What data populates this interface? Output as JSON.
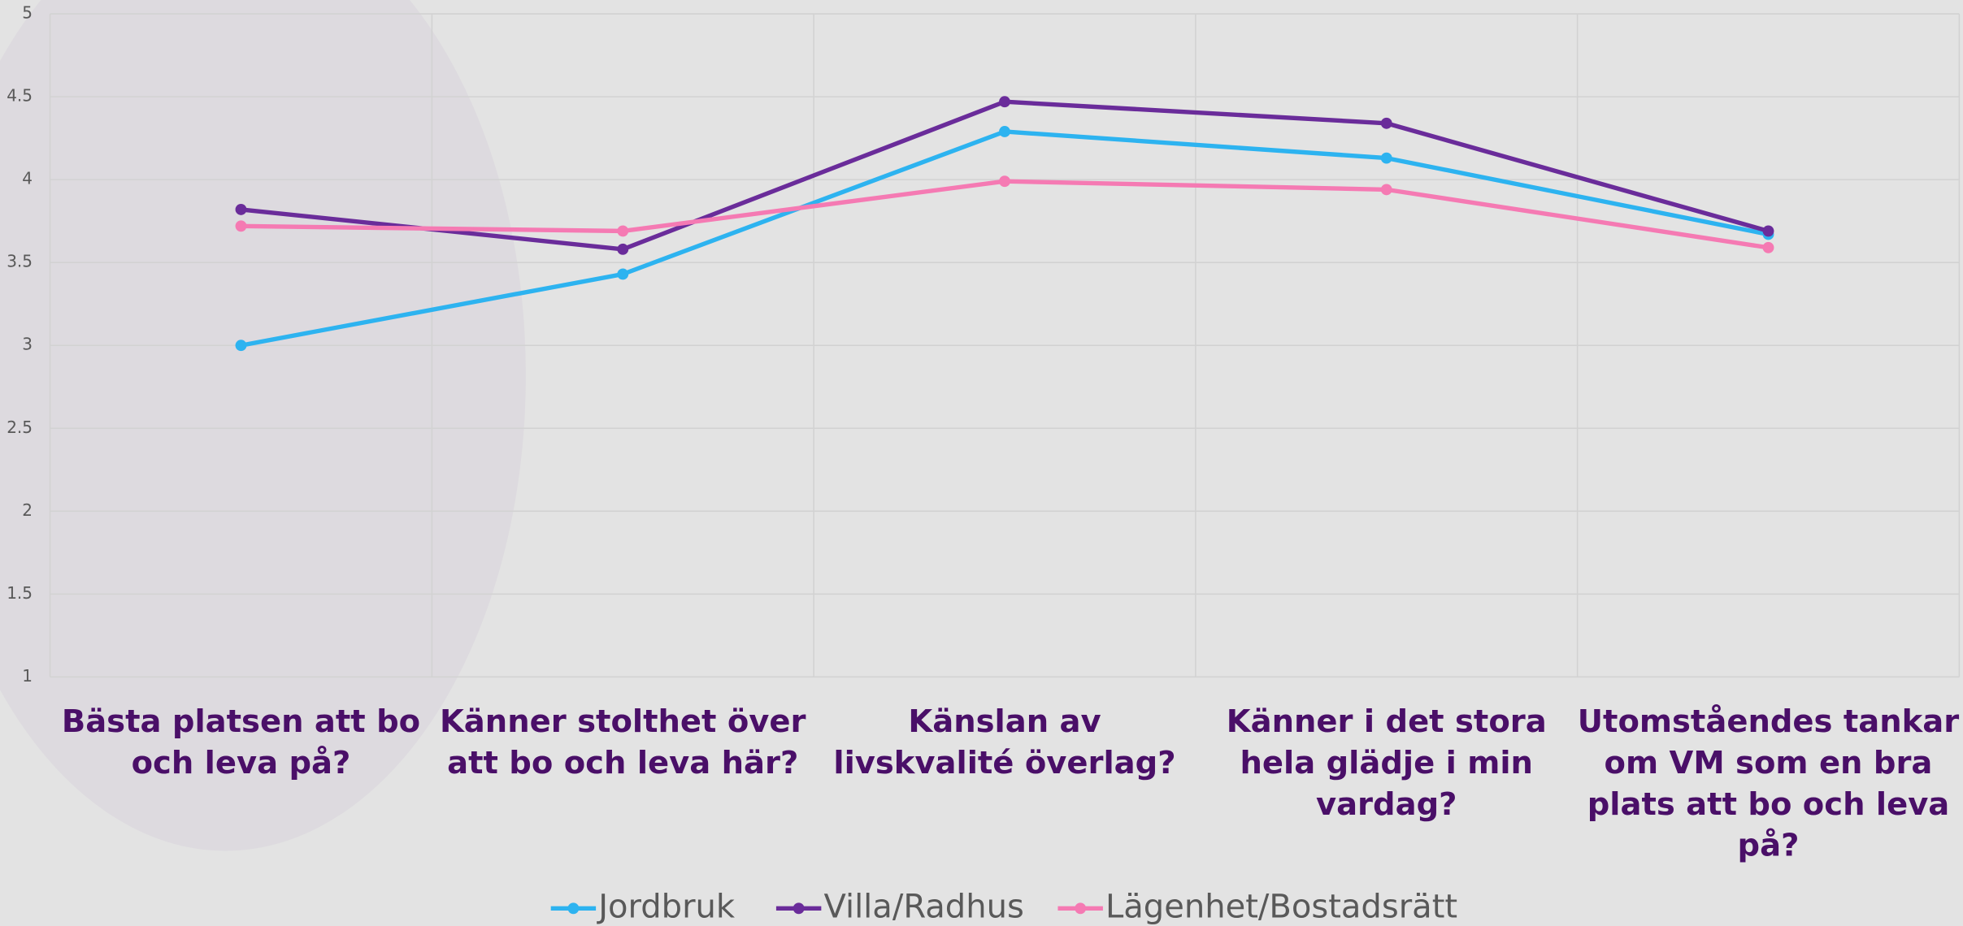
{
  "chart_data": {
    "type": "line",
    "categories": [
      "Bästa platsen att bo och leva på?",
      "Känner stolthet över att bo och leva här?",
      "Känslan av livskvalité överlag?",
      "Känner i det stora hela glädje i min vardag?",
      "Utomståendes tankar om VM som en bra plats att bo och leva på?"
    ],
    "series": [
      {
        "name": "Jordbruk",
        "color": "#2db3f0",
        "values": [
          3.0,
          3.43,
          4.29,
          4.13,
          3.67
        ]
      },
      {
        "name": "Villa/Radhus",
        "color": "#6a2c9a",
        "values": [
          3.82,
          3.58,
          4.47,
          4.34,
          3.69
        ]
      },
      {
        "name": "Lägenhet/Bostadsrätt",
        "color": "#f57ab3",
        "values": [
          3.72,
          3.69,
          3.99,
          3.94,
          3.59
        ]
      }
    ],
    "ylim": [
      1,
      5
    ],
    "yticks": [
      1,
      1.5,
      2,
      2.5,
      3,
      3.5,
      4,
      4.5,
      5
    ],
    "grid": true,
    "legend": "bottom"
  }
}
